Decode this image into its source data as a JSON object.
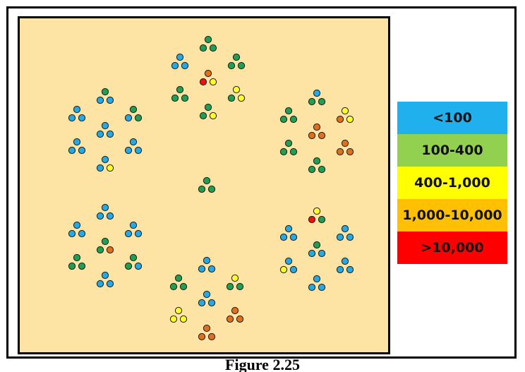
{
  "legend": [
    {
      "label": "<100",
      "color": "#20b0ee"
    },
    {
      "label": "100-400",
      "color": "#92d050"
    },
    {
      "label": "400-1,000",
      "color": "#ffff00"
    },
    {
      "label": "1,000-10,000",
      "color": "#ffc000"
    },
    {
      "label": ">10,000",
      "color": "#ff0000"
    }
  ],
  "dot_colors": {
    "blue": "#22a9e6",
    "green": "#1fa050",
    "yellow": "#ffff2a",
    "orange": "#e06f1c",
    "red": "#ee1111"
  },
  "clusters": {
    "center": [
      [
        "green",
        "green",
        "green"
      ]
    ],
    "top": [
      [
        "green",
        "green",
        "green"
      ],
      [
        "blue",
        "blue",
        "blue"
      ],
      [
        "green",
        "green",
        "green"
      ],
      [
        "orange",
        "red",
        "yellow"
      ],
      [
        "green",
        "green",
        "green"
      ],
      [
        "yellow",
        "green",
        "yellow"
      ],
      [
        "green",
        "green",
        "yellow"
      ]
    ],
    "upper_left": [
      [
        "green",
        "blue",
        "blue"
      ],
      [
        "blue",
        "blue",
        "blue"
      ],
      [
        "green",
        "blue",
        "green"
      ],
      [
        "blue",
        "blue",
        "blue"
      ],
      [
        "blue",
        "blue",
        "blue"
      ],
      [
        "blue",
        "blue",
        "blue"
      ],
      [
        "blue",
        "blue",
        "yellow"
      ]
    ],
    "upper_right": [
      [
        "blue",
        "green",
        "green"
      ],
      [
        "green",
        "green",
        "green"
      ],
      [
        "yellow",
        "orange",
        "yellow"
      ],
      [
        "orange",
        "orange",
        "orange"
      ],
      [
        "green",
        "green",
        "green"
      ],
      [
        "orange",
        "orange",
        "orange"
      ],
      [
        "green",
        "green",
        "green"
      ]
    ],
    "lower_left": [
      [
        "blue",
        "blue",
        "blue"
      ],
      [
        "blue",
        "blue",
        "blue"
      ],
      [
        "blue",
        "blue",
        "blue"
      ],
      [
        "green",
        "green",
        "orange"
      ],
      [
        "green",
        "green",
        "green"
      ],
      [
        "green",
        "green",
        "blue"
      ],
      [
        "blue",
        "blue",
        "blue"
      ]
    ],
    "lower_right": [
      [
        "yellow",
        "red",
        "green"
      ],
      [
        "blue",
        "blue",
        "blue"
      ],
      [
        "blue",
        "blue",
        "blue"
      ],
      [
        "green",
        "blue",
        "blue"
      ],
      [
        "blue",
        "yellow",
        "blue"
      ],
      [
        "blue",
        "blue",
        "blue"
      ],
      [
        "blue",
        "blue",
        "blue"
      ]
    ],
    "bottom": [
      [
        "blue",
        "blue",
        "blue"
      ],
      [
        "green",
        "green",
        "green"
      ],
      [
        "yellow",
        "green",
        "green"
      ],
      [
        "blue",
        "blue",
        "blue"
      ],
      [
        "yellow",
        "yellow",
        "yellow"
      ],
      [
        "orange",
        "orange",
        "orange"
      ],
      [
        "orange",
        "orange",
        "orange"
      ]
    ]
  },
  "caption": "Figure 2.25"
}
